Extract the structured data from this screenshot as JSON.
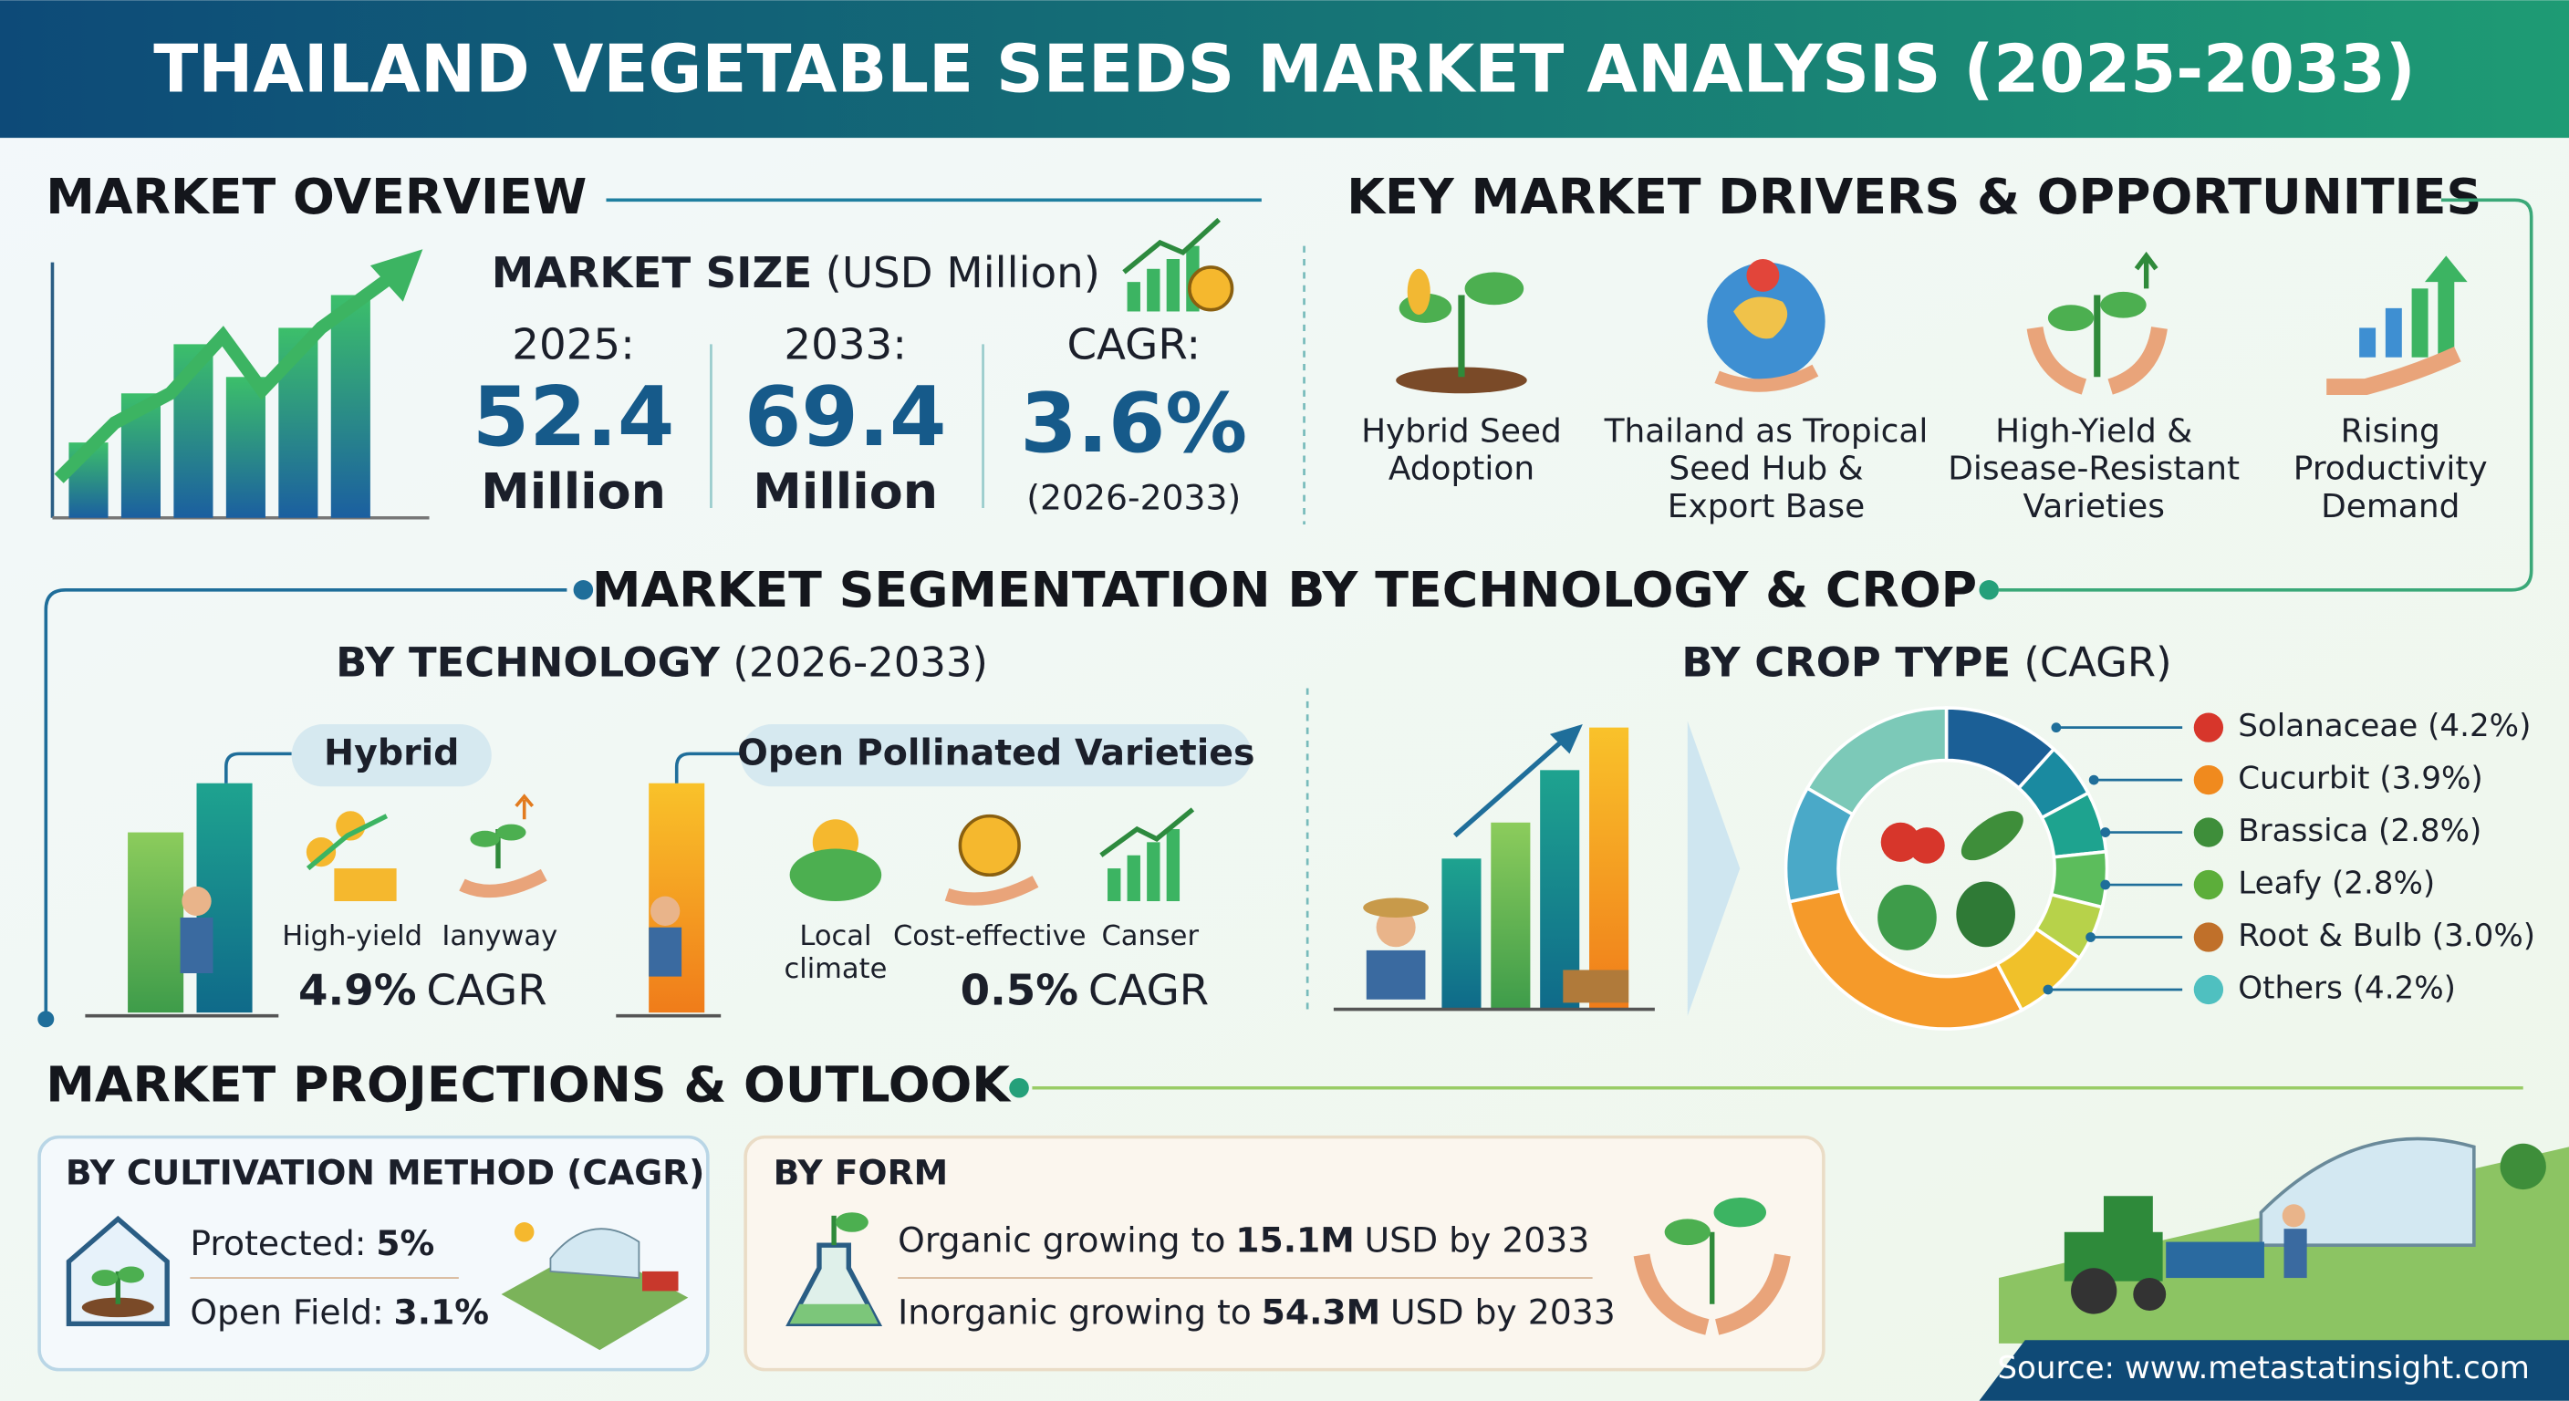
{
  "header": {
    "title": "THAILAND VEGETABLE SEEDS MARKET ANALYSIS (2025-2033)"
  },
  "overview": {
    "title": "MARKET OVERVIEW",
    "size_label": "MARKET SIZE",
    "size_unit": "(USD Million)",
    "items": [
      {
        "year": "2025:",
        "value": "52.4",
        "unit": "Million"
      },
      {
        "year": "2033:",
        "value": "69.4",
        "unit": "Million"
      },
      {
        "year": "CAGR:",
        "value": "3.6%",
        "unit": "(2026-2033)"
      }
    ]
  },
  "drivers": {
    "title": "KEY MARKET DRIVERS & OPPORTUNITIES",
    "items": [
      [
        "Hybrid Seed",
        "Adoption"
      ],
      [
        "Thailand as Tropical",
        "Seed Hub &",
        "Export Base"
      ],
      [
        "High-Yield &",
        "Disease-Resistant",
        "Varieties"
      ],
      [
        "Rising",
        "Productivity",
        "Demand"
      ]
    ]
  },
  "segmentation": {
    "title": "MARKET SEGMENTATION BY TECHNOLOGY & CROP",
    "technology": {
      "title": "BY TECHNOLOGY",
      "period": "(2026-2033)",
      "groups": [
        {
          "name": "Hybrid",
          "features": [
            [
              "High-yield"
            ],
            [
              "Ιanyway"
            ]
          ],
          "cagr": "4.9%",
          "cagr_label": "CAGR"
        },
        {
          "name": "Open Pollinated Varieties",
          "features": [
            [
              "Local",
              "climate"
            ],
            [
              "Cost-effective"
            ],
            [
              "Canser"
            ]
          ],
          "cagr": "0.5%",
          "cagr_label": "CAGR"
        }
      ]
    },
    "crop": {
      "title": "BY CROP TYPE",
      "subtitle": "(CAGR)",
      "items": [
        "Solanaceae (4.2%)",
        "Cucurbit (3.9%)",
        "Brassica (2.8%)",
        "Leafy (2.8%)",
        "Root & Bulb (3.0%)",
        "Others (4.2%)"
      ]
    }
  },
  "projections": {
    "title": "MARKET PROJECTIONS & OUTLOOK",
    "cultivation": {
      "title": "BY CULTIVATION METHOD (CAGR)",
      "items": [
        {
          "label": "Protected:",
          "value": "5%"
        },
        {
          "label": "Open Field:",
          "value": "3.1%"
        }
      ]
    },
    "form": {
      "title": "BY FORM",
      "items": [
        {
          "pre": "Organic growing to",
          "value": "15.1M",
          "post": "USD by 2033"
        },
        {
          "pre": "Inorganic growing to",
          "value": "54.3M",
          "post": "USD by 2033"
        }
      ]
    }
  },
  "source": "Source: www.metastatinsight.com"
}
